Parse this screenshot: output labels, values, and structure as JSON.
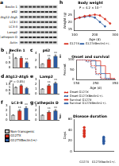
{
  "blot": {
    "panel": "a",
    "rows": [
      "Beclin 1",
      "p62",
      "Atg12-Atg5",
      "LC3-I",
      "LC3-II",
      "Lamp2",
      "Cathepsin D",
      "Actin"
    ]
  },
  "bar_legend": [
    {
      "name": "Non-transgenic",
      "color": "#c8c8c8"
    },
    {
      "name": "G127X",
      "color": "#d7301f"
    },
    {
      "name": "G127XBeclin1+/-",
      "color": "#2c5aa0"
    }
  ],
  "chart_data": [
    {
      "type": "bar",
      "panel": "b",
      "title": "Beclin 1",
      "categories": [
        "Non-transgenic",
        "G127X",
        "G127XBeclin1+/-"
      ],
      "values": [
        1,
        1.05,
        0.55
      ],
      "errors": [
        0.08,
        0.1,
        0.06
      ],
      "significance": [
        null,
        null,
        "**"
      ],
      "colors": [
        "#c8c8c8",
        "#d7301f",
        "#2c5aa0"
      ],
      "ylim": [
        0,
        1.5
      ],
      "yticks": [
        0,
        0.5,
        1,
        1.5
      ],
      "tick_labels": "y"
    },
    {
      "type": "bar",
      "panel": "c",
      "title": "p62",
      "categories": [
        "Non-transgenic",
        "G127X",
        "G127XBeclin1+/-"
      ],
      "values": [
        1,
        2.4,
        3.3
      ],
      "errors": [
        0.1,
        0.3,
        0.3
      ],
      "significance": [
        null,
        "**",
        "**"
      ],
      "colors": [
        "#c8c8c8",
        "#d7301f",
        "#2c5aa0"
      ],
      "ylim": [
        0,
        4
      ],
      "yticks": [
        0,
        2,
        4
      ],
      "tick_labels": "y"
    },
    {
      "type": "bar",
      "panel": "d",
      "title": "Atg12-Atg5",
      "subtitle": "(P = 0.05)",
      "categories": [
        "Non-transgenic",
        "G127X",
        "G127XBeclin1+/-"
      ],
      "values": [
        1,
        1.3,
        0.9
      ],
      "errors": [
        0.08,
        0.1,
        0.08
      ],
      "significance": [
        null,
        null,
        null
      ],
      "colors": [
        "#c8c8c8",
        "#d7301f",
        "#2c5aa0"
      ],
      "ylim": [
        0,
        1.5
      ],
      "yticks": [
        0,
        0.5,
        1,
        1.5
      ],
      "tick_labels": "y"
    },
    {
      "type": "bar",
      "panel": "e",
      "title": "Lamp2",
      "categories": [
        "Non-transgenic",
        "G127X",
        "G127XBeclin1+/-"
      ],
      "values": [
        1,
        1.8,
        2.3
      ],
      "errors": [
        0.1,
        0.2,
        0.2
      ],
      "significance": [
        null,
        "**",
        "**"
      ],
      "colors": [
        "#c8c8c8",
        "#d7301f",
        "#2c5aa0"
      ],
      "ylim": [
        0,
        3
      ],
      "yticks": [
        0,
        1,
        2,
        3
      ],
      "tick_labels": "y"
    },
    {
      "type": "bar",
      "panel": "f",
      "title": "LC3-II",
      "categories": [
        "Non-transgenic",
        "G127X",
        "G127XBeclin1+/-"
      ],
      "values": [
        1,
        2.0,
        2.6
      ],
      "errors": [
        0.1,
        0.2,
        0.2
      ],
      "significance": [
        null,
        "**",
        "**"
      ],
      "colors": [
        "#c8c8c8",
        "#d7301f",
        "#2c5aa0"
      ],
      "ylim": [
        0,
        3
      ],
      "yticks": [
        0,
        1,
        2,
        3
      ],
      "tick_labels": "y"
    },
    {
      "type": "bar",
      "panel": "g",
      "title": "Cathepsin D",
      "categories": [
        "Non-transgenic",
        "G127X",
        "G127XBeclin1+/-"
      ],
      "values": [
        1,
        1.7,
        2.0
      ],
      "errors": [
        0.1,
        0.2,
        0.2
      ],
      "significance": [
        null,
        "**",
        "**"
      ],
      "colors": [
        "#c8c8c8",
        "#d7301f",
        "#2c5aa0"
      ],
      "ylim": [
        0,
        3
      ],
      "yticks": [
        0,
        1,
        2,
        3
      ],
      "tick_labels": "y"
    },
    {
      "type": "line",
      "panel": "h",
      "title": "Body weight",
      "subtitle": "P = 4.2 × 10⁻⁷",
      "xlabel": "Age (d)",
      "ylabel": "Weight (g)",
      "x": [
        100,
        125,
        150,
        175,
        200,
        225,
        250,
        275,
        300
      ],
      "series": [
        {
          "name": "G127X",
          "color": "#d7301f",
          "marker": "circle",
          "line_style": "solid",
          "values": [
            22,
            23,
            24,
            24.5,
            25,
            24.5,
            22,
            19,
            null
          ]
        },
        {
          "name": "G127XBeclin1+/-",
          "color": "#2c5aa0",
          "marker": "circle",
          "line_style": "solid",
          "values": [
            22,
            23,
            23.5,
            24,
            23,
            20,
            17,
            null,
            null
          ]
        }
      ],
      "xlim": [
        100,
        300
      ],
      "xticks": [
        100,
        200,
        300
      ],
      "ylim": [
        14,
        28
      ],
      "yticks": [
        15,
        20,
        25
      ],
      "legend": "bottom"
    },
    {
      "type": "step",
      "panel": "i",
      "title": "Onset and survival",
      "xlabel": "Age (d)",
      "ylabel": "Percent",
      "x": [
        150,
        175,
        200,
        225,
        250,
        275,
        300,
        325,
        350
      ],
      "series": [
        {
          "name": "Onset G127X",
          "color": "#d7301f",
          "line_style": "dashed",
          "values": [
            100,
            100,
            95,
            70,
            30,
            5,
            0,
            0,
            0
          ]
        },
        {
          "name": "Onset G127XBeclin1+/-",
          "color": "#2c5aa0",
          "line_style": "dashed",
          "values": [
            100,
            100,
            90,
            60,
            25,
            0,
            0,
            0,
            0
          ]
        },
        {
          "name": "Survival G127X",
          "color": "#d7301f",
          "line_style": "solid",
          "values": [
            100,
            100,
            100,
            100,
            95,
            70,
            30,
            5,
            0
          ]
        },
        {
          "name": "Survival G127XBeclin1+/-",
          "color": "#2c5aa0",
          "line_style": "solid",
          "values": [
            100,
            100,
            100,
            95,
            70,
            30,
            5,
            0,
            0
          ]
        }
      ],
      "xlim": [
        150,
        350
      ],
      "xticks": [
        150,
        250,
        350
      ],
      "ylim": [
        0,
        100
      ],
      "yticks": [
        0,
        50,
        100
      ],
      "legend": "bottom"
    },
    {
      "type": "dot",
      "panel": "j",
      "title": "Disease duration",
      "ylabel": "Days",
      "categories": [
        "G127X",
        "G127XBeclin1+/-"
      ],
      "values": [
        [
          30,
          35,
          40,
          28,
          45,
          38,
          33
        ],
        [
          18,
          22,
          25,
          15,
          20,
          27,
          19
        ]
      ],
      "colors": [
        "#d7301f",
        "#2c5aa0"
      ],
      "ylim": [
        0,
        60
      ],
      "yticks": [
        0,
        20,
        40,
        60
      ]
    }
  ]
}
